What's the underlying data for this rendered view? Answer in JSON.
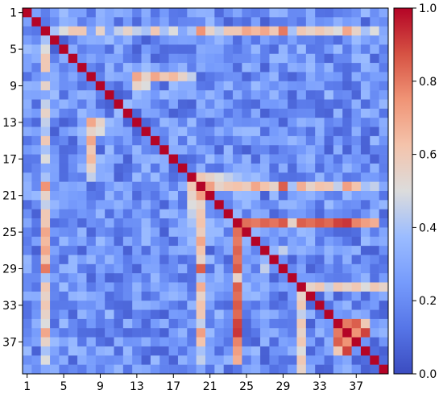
{
  "chart_data": {
    "type": "heatmap",
    "title": "",
    "xlabel": "",
    "ylabel": "",
    "n": 40,
    "x_tick_labels": [
      "1",
      "5",
      "9",
      "13",
      "17",
      "21",
      "25",
      "29",
      "33",
      "37"
    ],
    "y_tick_labels": [
      "1",
      "5",
      "9",
      "13",
      "17",
      "21",
      "25",
      "29",
      "33",
      "37"
    ],
    "colorbar": {
      "colormap": "coolwarm",
      "range": [
        0.0,
        1.0
      ],
      "tick_labels": [
        "0.0",
        "0.2",
        "0.4",
        "0.6",
        "0.8",
        "1.0"
      ]
    },
    "diagonal_value": 1.0,
    "strong_blocks": [
      {
        "row": 24,
        "cols": [
          25,
          26,
          27,
          28,
          29,
          30,
          31,
          32,
          33,
          34,
          35,
          36,
          37,
          38,
          39
        ],
        "values": [
          0.82,
          0.8,
          0.84,
          0.81,
          0.86,
          0.55,
          0.85,
          0.82,
          0.86,
          0.83,
          0.9,
          0.92,
          0.78,
          0.72,
          0.68
        ]
      },
      {
        "row": 20,
        "cols": [
          21,
          22,
          23,
          24,
          25,
          26,
          27,
          28,
          29,
          30,
          31,
          32,
          33,
          34,
          35,
          36,
          37,
          38,
          39,
          40
        ],
        "values": [
          0.72,
          0.55,
          0.6,
          0.62,
          0.58,
          0.7,
          0.62,
          0.55,
          0.85,
          0.4,
          0.68,
          0.55,
          0.62,
          0.6,
          0.45,
          0.72,
          0.62,
          0.4,
          0.45,
          0.3
        ]
      },
      {
        "row": 19,
        "cols": [
          20,
          21,
          22,
          23,
          24
        ],
        "values": [
          0.6,
          0.55,
          0.5,
          0.45,
          0.4
        ]
      },
      {
        "row": 3,
        "cols": [
          4,
          5,
          6,
          7,
          8,
          9,
          10,
          11,
          12,
          13,
          14,
          15,
          16,
          17,
          18,
          19,
          20,
          21,
          22,
          23,
          24,
          25,
          26,
          27,
          28,
          29,
          30,
          31,
          32,
          33,
          34,
          35,
          36,
          37,
          38,
          39,
          40
        ],
        "values": [
          0.4,
          0.5,
          0.6,
          0.6,
          0.3,
          0.55,
          0.3,
          0.45,
          0.55,
          0.45,
          0.4,
          0.6,
          0.4,
          0.5,
          0.3,
          0.4,
          0.75,
          0.55,
          0.45,
          0.6,
          0.6,
          0.7,
          0.65,
          0.7,
          0.6,
          0.8,
          0.4,
          0.6,
          0.55,
          0.6,
          0.55,
          0.5,
          0.7,
          0.55,
          0.4,
          0.5,
          0.3
        ]
      },
      {
        "row": 8,
        "cols": [
          14,
          15,
          16,
          17,
          18,
          19
        ],
        "values": [
          0.75,
          0.7,
          0.6,
          0.65,
          0.55,
          0.45
        ]
      },
      {
        "row": 10,
        "cols": [
          20,
          21
        ],
        "values": [
          0.25,
          0.35
        ]
      },
      {
        "row": 13,
        "cols": [
          8,
          9
        ],
        "values": [
          0.7,
          0.55
        ]
      },
      {
        "row": 14,
        "cols": [
          8,
          9
        ],
        "values": [
          0.55,
          0.5
        ]
      },
      {
        "row": 3,
        "cols": [],
        "values": []
      },
      {
        "row": 36,
        "cols": [
          37,
          38
        ],
        "values": [
          0.75,
          0.9
        ]
      },
      {
        "row": 35,
        "cols": [
          36,
          37,
          38
        ],
        "values": [
          0.8,
          0.85,
          0.6
        ]
      },
      {
        "row": 27,
        "cols": [
          28,
          29,
          30
        ],
        "values": [
          0.35,
          0.45,
          0.3
        ]
      },
      {
        "row": 31,
        "cols": [
          32,
          33,
          34,
          35,
          36,
          37,
          38,
          39,
          40
        ],
        "values": [
          0.55,
          0.6,
          0.45,
          0.6,
          0.55,
          0.6,
          0.5,
          0.6,
          0.55
        ]
      }
    ]
  }
}
